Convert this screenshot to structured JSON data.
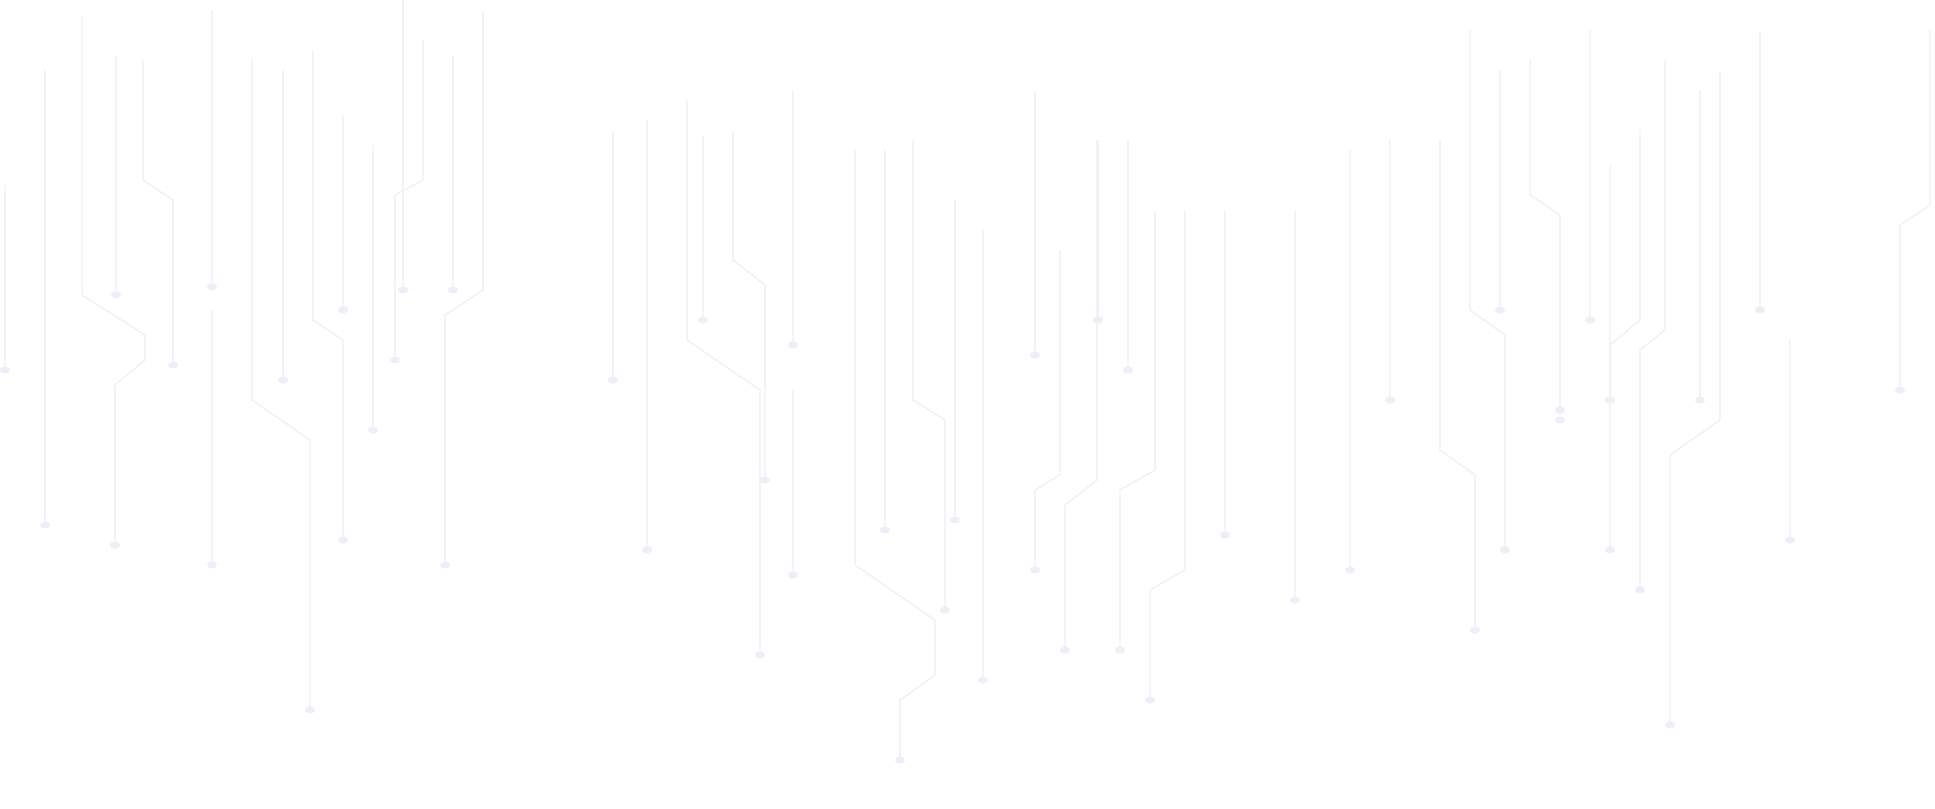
{
  "background": {
    "pattern": "circuit-traces",
    "background_color": "#ffffff",
    "trace_color": "#eef0f7",
    "node_color": "#eceff7"
  }
}
